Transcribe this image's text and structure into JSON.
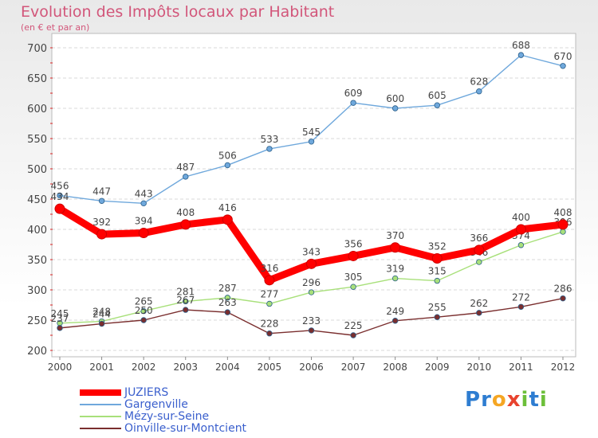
{
  "chart_data": {
    "type": "line",
    "title": "Evolution des Impôts locaux par Habitant",
    "subtitle": "(en € et par an)",
    "x": [
      "2000",
      "2001",
      "2002",
      "2003",
      "2004",
      "2005",
      "2006",
      "2007",
      "2008",
      "2009",
      "2010",
      "2011",
      "2012"
    ],
    "ylim": [
      200,
      700
    ],
    "yticks": [
      200,
      250,
      300,
      350,
      400,
      450,
      500,
      550,
      600,
      650,
      700
    ],
    "grid": "horizontal dashed",
    "legend_position": "bottom-left",
    "series": [
      {
        "name": "JUZIERS",
        "color": "#ff0000",
        "values": [
          434,
          392,
          394,
          408,
          416,
          316,
          343,
          356,
          370,
          352,
          366,
          400,
          408
        ]
      },
      {
        "name": "Gargenville",
        "color": "#6fa8dc",
        "values": [
          456,
          447,
          443,
          487,
          506,
          533,
          545,
          609,
          600,
          605,
          628,
          688,
          670
        ]
      },
      {
        "name": "Mézy-sur-Seine",
        "color": "#a8e07a",
        "values": [
          245,
          248,
          265,
          281,
          287,
          277,
          296,
          305,
          319,
          315,
          346,
          374,
          396
        ]
      },
      {
        "name": "Oinville-sur-Montcient",
        "color": "#7a2e2e",
        "values": [
          237,
          244,
          250,
          267,
          263,
          228,
          233,
          225,
          249,
          255,
          262,
          272,
          286
        ]
      }
    ]
  },
  "brand": {
    "letters": [
      "P",
      "r",
      "o",
      "x",
      "i",
      "t",
      "i"
    ]
  }
}
